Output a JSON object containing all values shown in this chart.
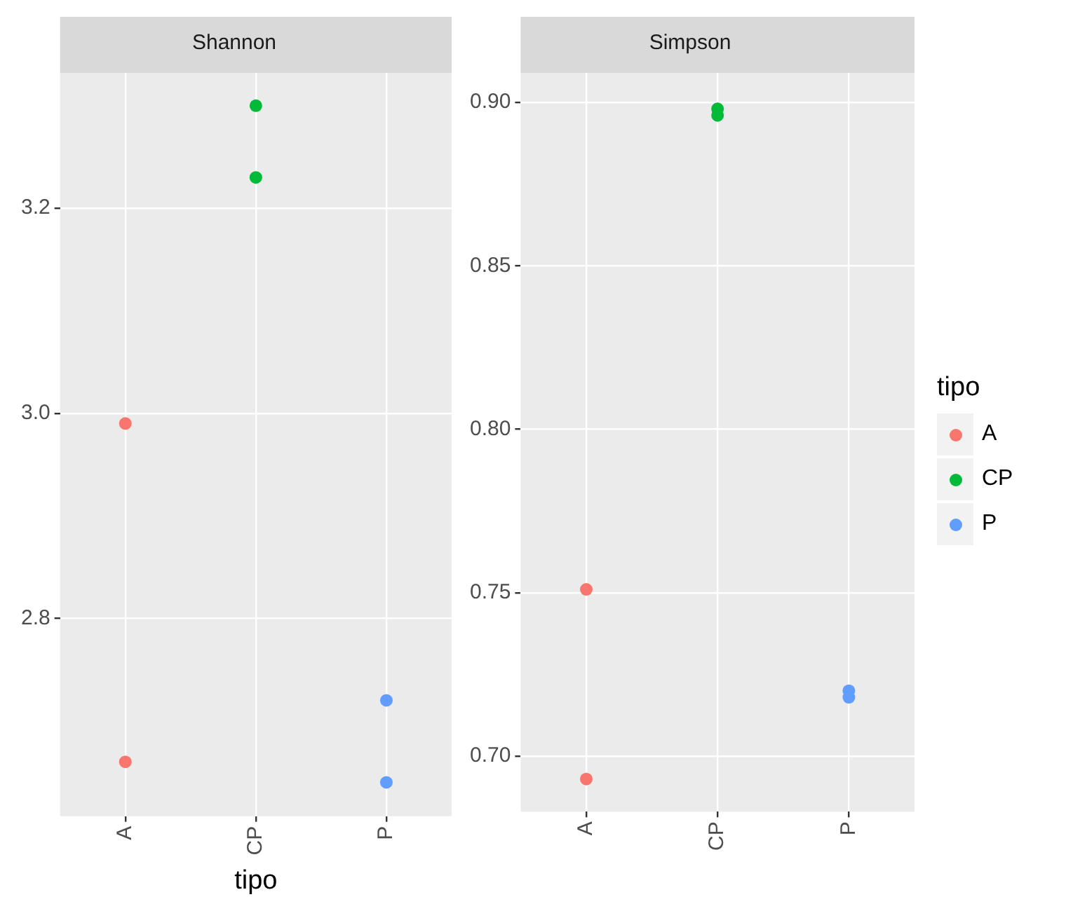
{
  "chart_data": [
    {
      "type": "scatter",
      "title": "Shannon",
      "xlabel": "tipo",
      "categories": [
        "A",
        "CP",
        "P"
      ],
      "marker": "circle",
      "grid": true,
      "legend": "right",
      "legend_title": "tipo",
      "ylim": [
        2.607,
        3.332
      ],
      "yticks": [
        2.8,
        {
          "value": 3,
          "label": "3.0"
        },
        3.2
      ],
      "series": [
        {
          "name": "A",
          "color": "#f8766d",
          "x": [
            "A",
            "A"
          ],
          "values": [
            2.99,
            2.66
          ]
        },
        {
          "name": "CP",
          "color": "#00ba38",
          "x": [
            "CP",
            "CP"
          ],
          "values": [
            3.3,
            3.23
          ]
        },
        {
          "name": "P",
          "color": "#619cff",
          "x": [
            "P",
            "P"
          ],
          "values": [
            2.72,
            2.64
          ]
        }
      ]
    },
    {
      "type": "scatter",
      "title": "Simpson",
      "categories": [
        "A",
        "CP",
        "P"
      ],
      "marker": "circle",
      "grid": true,
      "legend": false,
      "ylim": [
        0.683,
        0.909
      ],
      "yticks": [
        {
          "value": 0.7,
          "label": "0.70"
        },
        {
          "value": 0.75,
          "label": "0.75"
        },
        {
          "value": 0.8,
          "label": "0.80"
        },
        {
          "value": 0.85,
          "label": "0.85"
        },
        {
          "value": 0.9,
          "label": "0.90"
        }
      ],
      "series": [
        {
          "name": "A",
          "color": "#f8766d",
          "x": [
            "A",
            "A"
          ],
          "values": [
            0.751,
            0.693
          ]
        },
        {
          "name": "CP",
          "color": "#00ba38",
          "x": [
            "CP",
            "CP"
          ],
          "values": [
            0.898,
            0.896
          ]
        },
        {
          "name": "P",
          "color": "#619cff",
          "x": [
            "P",
            "P"
          ],
          "values": [
            0.72,
            0.718
          ]
        }
      ]
    }
  ]
}
